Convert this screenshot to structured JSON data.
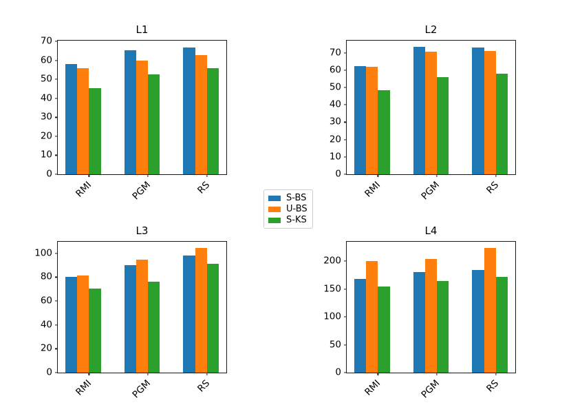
{
  "figure": {
    "background": "#ffffff"
  },
  "legend": {
    "position": "center-of-figure",
    "border_color": "#cccccc",
    "items": [
      {
        "label": "S-BS",
        "color": "#1f77b4"
      },
      {
        "label": "U-BS",
        "color": "#ff7f0e"
      },
      {
        "label": "S-KS",
        "color": "#2ca02c"
      }
    ]
  },
  "chart_data": [
    {
      "type": "bar",
      "title": "L1",
      "categories": [
        "RMI",
        "PGM",
        "RS"
      ],
      "series": [
        {
          "name": "S-BS",
          "color": "#1f77b4",
          "values": [
            58.0,
            65.3,
            66.9
          ]
        },
        {
          "name": "U-BS",
          "color": "#ff7f0e",
          "values": [
            56.0,
            59.8,
            62.8
          ]
        },
        {
          "name": "S-KS",
          "color": "#2ca02c",
          "values": [
            45.5,
            52.7,
            56.0
          ]
        }
      ],
      "xlabel": "",
      "ylabel": "",
      "ylim": [
        0,
        70.4
      ],
      "yticks": [
        0,
        10,
        20,
        30,
        40,
        50,
        60,
        70
      ],
      "xtick_rotation": 45,
      "grid": false,
      "legend_position": "shared-center"
    },
    {
      "type": "bar",
      "title": "L2",
      "categories": [
        "RMI",
        "PGM",
        "RS"
      ],
      "series": [
        {
          "name": "S-BS",
          "color": "#1f77b4",
          "values": [
            62.5,
            73.3,
            73.1
          ]
        },
        {
          "name": "U-BS",
          "color": "#ff7f0e",
          "values": [
            61.8,
            70.7,
            70.9
          ]
        },
        {
          "name": "S-KS",
          "color": "#2ca02c",
          "values": [
            48.4,
            56.1,
            58.1
          ]
        }
      ],
      "xlabel": "",
      "ylabel": "",
      "ylim": [
        0,
        77.0
      ],
      "yticks": [
        0,
        10,
        20,
        30,
        40,
        50,
        60,
        70
      ],
      "xtick_rotation": 45,
      "grid": false,
      "legend_position": "shared-center"
    },
    {
      "type": "bar",
      "title": "L3",
      "categories": [
        "RMI",
        "PGM",
        "RS"
      ],
      "series": [
        {
          "name": "S-BS",
          "color": "#1f77b4",
          "values": [
            80.5,
            90.2,
            98.0
          ]
        },
        {
          "name": "U-BS",
          "color": "#ff7f0e",
          "values": [
            81.2,
            94.5,
            104.5
          ]
        },
        {
          "name": "S-KS",
          "color": "#2ca02c",
          "values": [
            70.2,
            76.3,
            91.0
          ]
        }
      ],
      "xlabel": "",
      "ylabel": "",
      "ylim": [
        0,
        109.7
      ],
      "yticks": [
        0,
        20,
        40,
        60,
        80,
        100
      ],
      "xtick_rotation": 45,
      "grid": false,
      "legend_position": "shared-center"
    },
    {
      "type": "bar",
      "title": "L4",
      "categories": [
        "RMI",
        "PGM",
        "RS"
      ],
      "series": [
        {
          "name": "S-BS",
          "color": "#1f77b4",
          "values": [
            168,
            180,
            183.5
          ]
        },
        {
          "name": "U-BS",
          "color": "#ff7f0e",
          "values": [
            200.5,
            204,
            223.5
          ]
        },
        {
          "name": "S-KS",
          "color": "#2ca02c",
          "values": [
            154,
            164,
            171.5
          ]
        }
      ],
      "xlabel": "",
      "ylabel": "",
      "ylim": [
        0,
        234.7
      ],
      "yticks": [
        0,
        50,
        100,
        150,
        200
      ],
      "xtick_rotation": 45,
      "grid": false,
      "legend_position": "shared-center"
    }
  ]
}
